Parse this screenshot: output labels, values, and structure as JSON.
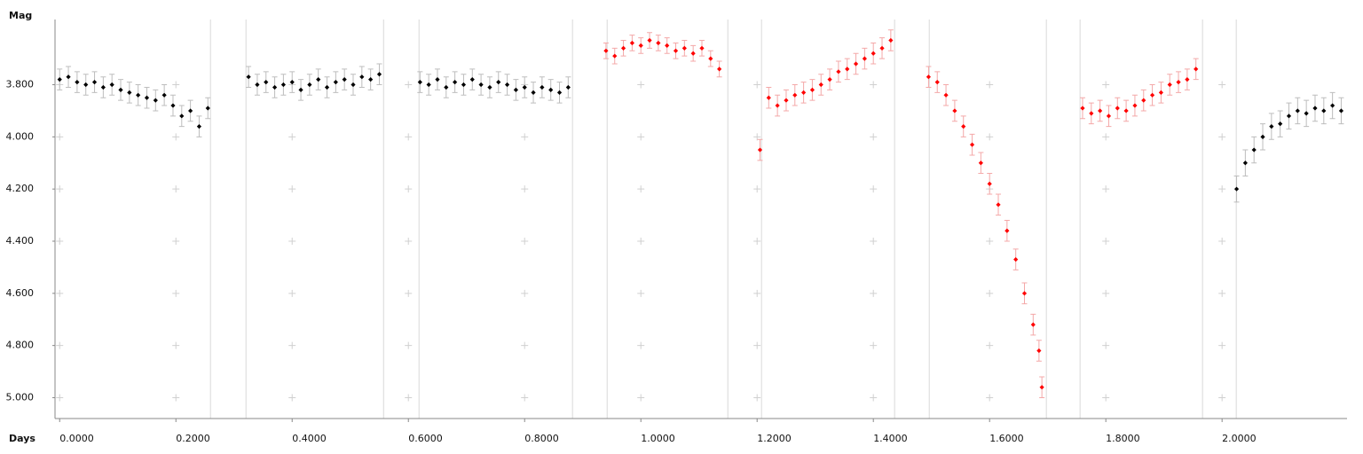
{
  "chart_data": {
    "type": "scatter",
    "y_label": "Mag",
    "x_label": "Days",
    "invert_y": true,
    "grid": "crosses",
    "xlim": [
      -0.008,
      2.215
    ],
    "ylim": [
      3.55,
      5.08
    ],
    "xticks": [
      {
        "value": 0,
        "label": "0.0000"
      },
      {
        "value": 0.2,
        "label": "0.2000"
      },
      {
        "value": 0.4,
        "label": "0.4000"
      },
      {
        "value": 0.6,
        "label": "0.6000"
      },
      {
        "value": 0.8,
        "label": "0.8000"
      },
      {
        "value": 1.0,
        "label": "1.0000"
      },
      {
        "value": 1.2,
        "label": "1.2000"
      },
      {
        "value": 1.4,
        "label": "1.4000"
      },
      {
        "value": 1.6,
        "label": "1.6000"
      },
      {
        "value": 1.8,
        "label": "1.8000"
      },
      {
        "value": 2.0,
        "label": "2.0000"
      }
    ],
    "yticks": [
      {
        "value": 3.8,
        "label": "3.800"
      },
      {
        "value": 4.0,
        "label": "4.000"
      },
      {
        "value": 4.2,
        "label": "4.200"
      },
      {
        "value": 4.4,
        "label": "4.400"
      },
      {
        "value": 4.6,
        "label": "4.600"
      },
      {
        "value": 4.8,
        "label": "4.800"
      },
      {
        "value": 5.0,
        "label": "5.000"
      }
    ],
    "separators": [
      0.2595,
      0.3206,
      0.5573,
      0.6183,
      0.8824,
      0.942,
      1.1496,
      1.2076,
      1.4366,
      1.4962,
      1.6977,
      1.7557,
      1.9664,
      2.0244
    ],
    "series": [
      {
        "color": "#000000",
        "error_color": "#bdbdbd",
        "error": 0.04,
        "x": [
          0,
          0.015,
          0.03,
          0.045,
          0.06,
          0.075,
          0.09,
          0.105,
          0.12,
          0.135,
          0.15,
          0.165,
          0.18,
          0.195,
          0.21,
          0.225,
          0.24,
          0.255
        ],
        "values": [
          3.78,
          3.77,
          3.79,
          3.8,
          3.79,
          3.81,
          3.8,
          3.82,
          3.83,
          3.84,
          3.85,
          3.86,
          3.84,
          3.88,
          3.92,
          3.9,
          3.96,
          3.89
        ]
      },
      {
        "color": "#000000",
        "error_color": "#bdbdbd",
        "error": 0.04,
        "x": [
          0.325,
          0.34,
          0.355,
          0.37,
          0.385,
          0.4,
          0.415,
          0.43,
          0.445,
          0.46,
          0.475,
          0.49,
          0.505,
          0.52,
          0.535,
          0.55
        ],
        "values": [
          3.77,
          3.8,
          3.79,
          3.81,
          3.8,
          3.79,
          3.82,
          3.8,
          3.78,
          3.81,
          3.79,
          3.78,
          3.8,
          3.77,
          3.78,
          3.76
        ]
      },
      {
        "color": "#000000",
        "error_color": "#bdbdbd",
        "error": 0.04,
        "x": [
          0.62,
          0.635,
          0.65,
          0.665,
          0.68,
          0.695,
          0.71,
          0.725,
          0.74,
          0.755,
          0.77,
          0.785,
          0.8,
          0.815,
          0.83,
          0.845,
          0.86,
          0.875
        ],
        "values": [
          3.79,
          3.8,
          3.78,
          3.81,
          3.79,
          3.8,
          3.78,
          3.8,
          3.81,
          3.79,
          3.8,
          3.82,
          3.81,
          3.83,
          3.81,
          3.82,
          3.83,
          3.81
        ]
      },
      {
        "color": "#ff0000",
        "error_color": "#f4a8a8",
        "error": 0.03,
        "x": [
          0.94,
          0.955,
          0.97,
          0.985,
          1.0,
          1.015,
          1.03,
          1.045,
          1.06,
          1.075,
          1.09,
          1.105,
          1.12,
          1.135
        ],
        "values": [
          3.67,
          3.69,
          3.66,
          3.64,
          3.65,
          3.63,
          3.64,
          3.65,
          3.67,
          3.66,
          3.68,
          3.66,
          3.7,
          3.74
        ]
      },
      {
        "color": "#ff0000",
        "error_color": "#f4a8a8",
        "error": 0.04,
        "x": [
          1.205,
          1.22,
          1.235,
          1.25,
          1.265,
          1.28,
          1.295,
          1.31,
          1.325,
          1.34,
          1.355,
          1.37,
          1.385,
          1.4,
          1.415,
          1.43
        ],
        "values": [
          4.05,
          3.85,
          3.88,
          3.86,
          3.84,
          3.83,
          3.82,
          3.8,
          3.78,
          3.75,
          3.74,
          3.72,
          3.7,
          3.68,
          3.66,
          3.63
        ]
      },
      {
        "color": "#ff0000",
        "error_color": "#f4a8a8",
        "error": 0.04,
        "x": [
          1.495,
          1.51,
          1.525,
          1.54,
          1.555,
          1.57,
          1.585,
          1.6,
          1.615,
          1.63,
          1.645,
          1.66,
          1.675,
          1.685,
          1.69
        ],
        "values": [
          3.77,
          3.79,
          3.84,
          3.9,
          3.96,
          4.03,
          4.1,
          4.18,
          4.26,
          4.36,
          4.47,
          4.6,
          4.72,
          4.82,
          4.96
        ]
      },
      {
        "color": "#ff0000",
        "error_color": "#f4a8a8",
        "error": 0.04,
        "x": [
          1.76,
          1.775,
          1.79,
          1.805,
          1.82,
          1.835,
          1.85,
          1.865,
          1.88,
          1.895,
          1.91,
          1.925,
          1.94,
          1.955
        ],
        "values": [
          3.89,
          3.91,
          3.9,
          3.92,
          3.89,
          3.9,
          3.88,
          3.86,
          3.84,
          3.83,
          3.8,
          3.79,
          3.78,
          3.74
        ]
      },
      {
        "color": "#000000",
        "error_color": "#bdbdbd",
        "error": 0.05,
        "x": [
          2.025,
          2.04,
          2.055,
          2.07,
          2.085,
          2.1,
          2.115,
          2.13,
          2.145,
          2.16,
          2.175,
          2.19,
          2.205
        ],
        "values": [
          4.2,
          4.1,
          4.05,
          4.0,
          3.96,
          3.95,
          3.92,
          3.9,
          3.91,
          3.89,
          3.9,
          3.88,
          3.9
        ]
      }
    ]
  }
}
